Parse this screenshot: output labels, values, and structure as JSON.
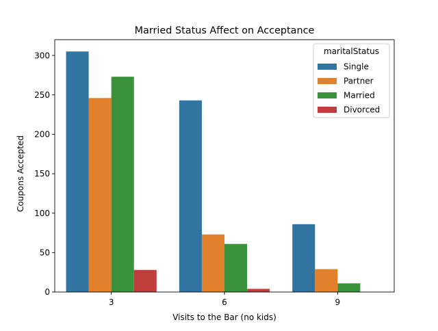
{
  "chart_data": {
    "type": "bar",
    "title": "Married Status Affect on Acceptance",
    "xlabel": "Visits to the Bar (no kids)",
    "ylabel": "Coupons Accepted",
    "categories": [
      "3",
      "6",
      "9"
    ],
    "ylim": [
      0,
      320
    ],
    "yticks": [
      0,
      50,
      100,
      150,
      200,
      250,
      300
    ],
    "grid": false,
    "legend": {
      "title": "maritalStatus",
      "placement": "top-right"
    },
    "series": [
      {
        "name": "Single",
        "color": "#3274a1",
        "values": [
          305,
          243,
          86
        ]
      },
      {
        "name": "Partner",
        "color": "#e1812c",
        "values": [
          246,
          73,
          29
        ]
      },
      {
        "name": "Married",
        "color": "#3a923a",
        "values": [
          273,
          61,
          11
        ]
      },
      {
        "name": "Divorced",
        "color": "#c03d3e",
        "values": [
          28,
          4,
          0
        ]
      }
    ]
  }
}
